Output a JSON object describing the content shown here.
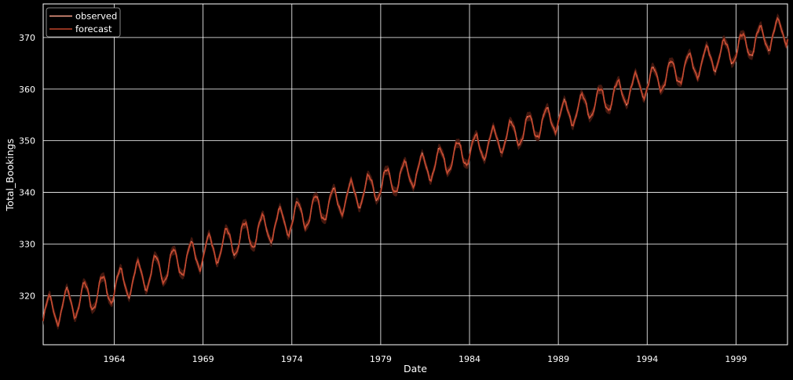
{
  "chart_data": {
    "type": "line",
    "title": "",
    "xlabel": "Date",
    "ylabel": "Total_Bookings",
    "x_axis": {
      "type": "date",
      "min": "1960-01",
      "max": "2001-12",
      "ticks": [
        "1964",
        "1969",
        "1974",
        "1979",
        "1984",
        "1989",
        "1994",
        "1999"
      ]
    },
    "y_axis": {
      "min": 310.5,
      "max": 376.5,
      "ticks": [
        320,
        330,
        340,
        350,
        360,
        370
      ]
    },
    "grid": true,
    "legend": {
      "placement": "top-left",
      "entries": [
        "observed",
        "forecast"
      ]
    },
    "x_start": "1960-01",
    "x_step": "month",
    "x_count": 504,
    "series": [
      {
        "name": "observed",
        "color": "#fca38b",
        "trend": {
          "at_1960": 316.5,
          "slope_per_year": 1.315
        },
        "seasonal": {
          "amplitude": 2.8,
          "peak_month": 5
        },
        "values_note": "monthly values, 1960-01 through 2001-12 (504 points)"
      },
      {
        "name": "forecast",
        "color": "#c1442b",
        "trend": {
          "at_1960": 316.5,
          "slope_per_year": 1.315
        },
        "seasonal": {
          "amplitude": 2.8,
          "peak_month": 5
        },
        "values_note": "monthly values, 1960-01 through 2001-12 (504 points)"
      }
    ]
  },
  "colors": {
    "background": "#000000",
    "grid": "#ffffff",
    "text": "#ffffff",
    "observed": "#fca38b",
    "forecast": "#c1442b",
    "band": "#4a1a10"
  }
}
